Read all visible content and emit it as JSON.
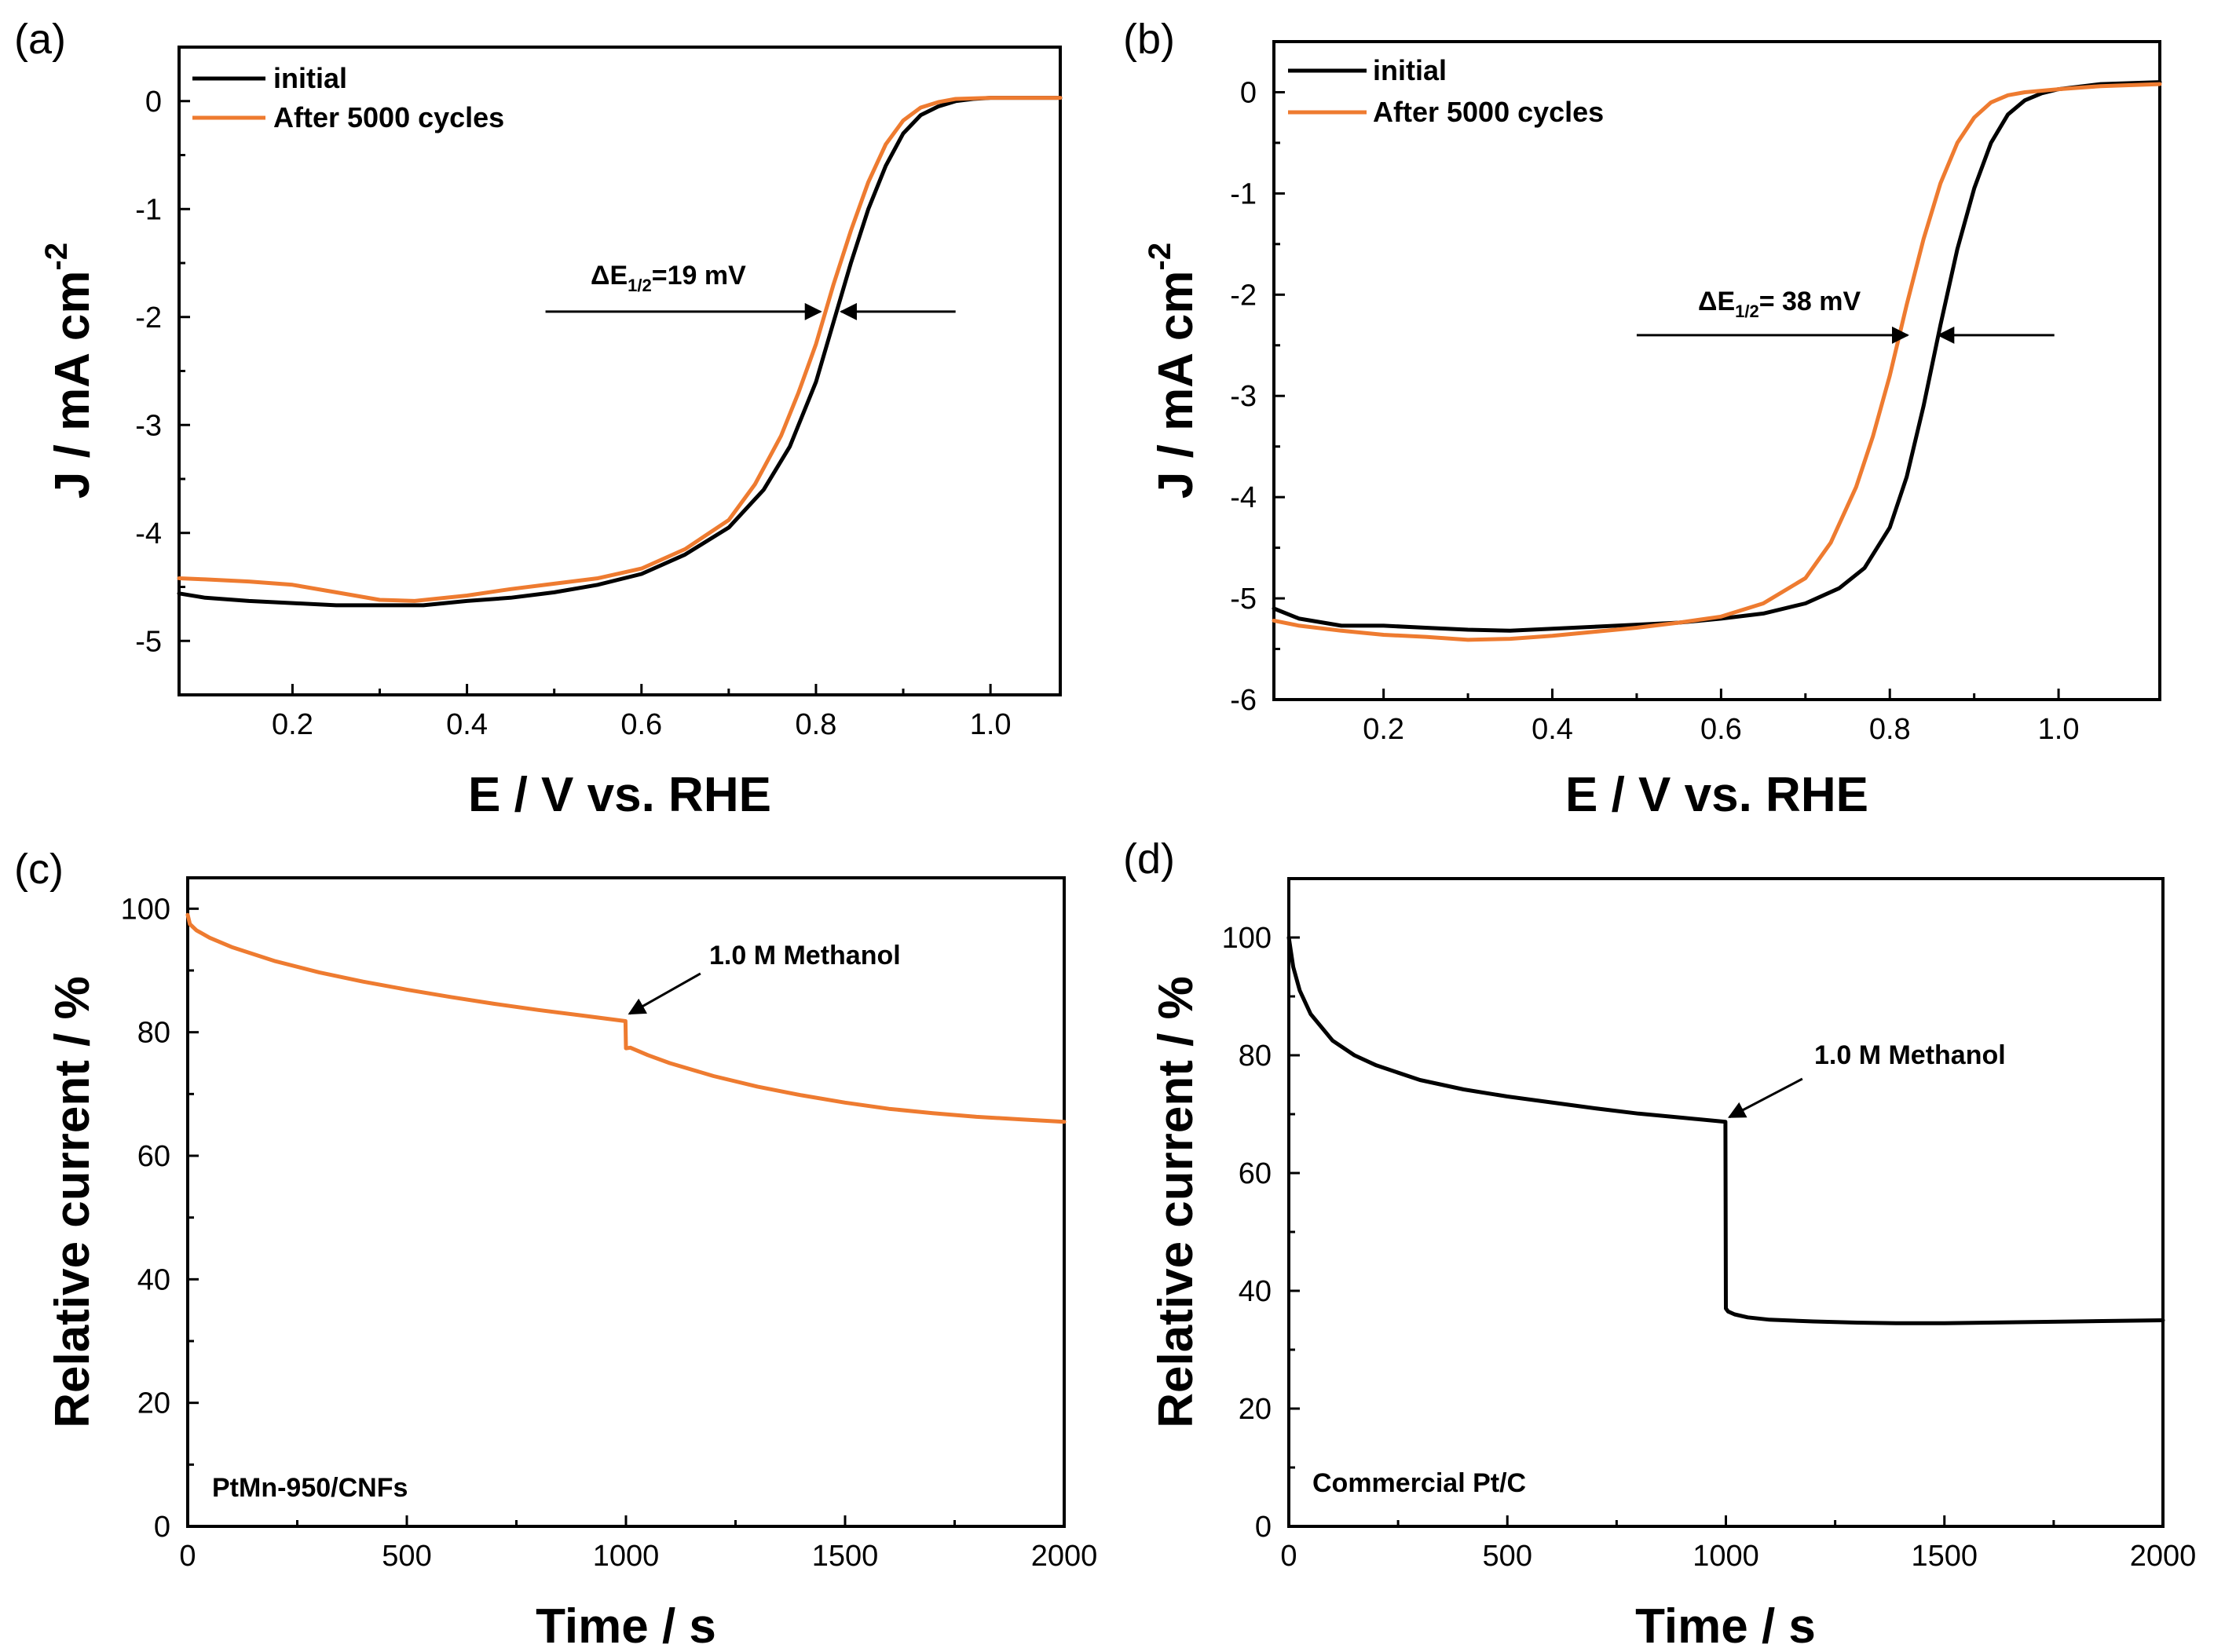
{
  "colors": {
    "initial": "#000000",
    "after_cycles": "#ee7b30",
    "orange_series": "#ee7b30",
    "black_series": "#000000"
  },
  "chart_data": [
    {
      "panel": "(a)",
      "type": "line",
      "xlabel": "E / V vs. RHE",
      "ylabel": "J / mA cm",
      "ylabel_superscript": "-2",
      "xlim": [
        0.07,
        1.08
      ],
      "ylim": [
        -5.5,
        0.5
      ],
      "xticks": [
        "0.2",
        "0.4",
        "0.6",
        "0.8",
        "1.0"
      ],
      "xtick_values": [
        0.2,
        0.4,
        0.6,
        0.8,
        1.0
      ],
      "yticks": [
        "0",
        "-1",
        "-2",
        "-3",
        "-4",
        "-5"
      ],
      "ytick_values": [
        0,
        -1,
        -2,
        -3,
        -4,
        -5
      ],
      "legend_position": "top-left",
      "series": [
        {
          "name": "initial",
          "color": "#000000",
          "x": [
            0.07,
            0.1,
            0.15,
            0.2,
            0.25,
            0.3,
            0.35,
            0.4,
            0.45,
            0.5,
            0.55,
            0.6,
            0.65,
            0.7,
            0.74,
            0.77,
            0.8,
            0.82,
            0.84,
            0.86,
            0.88,
            0.9,
            0.92,
            0.94,
            0.96,
            0.98,
            1.0,
            1.04,
            1.08
          ],
          "y": [
            -4.56,
            -4.6,
            -4.63,
            -4.65,
            -4.67,
            -4.67,
            -4.67,
            -4.63,
            -4.6,
            -4.55,
            -4.48,
            -4.38,
            -4.2,
            -3.95,
            -3.6,
            -3.2,
            -2.6,
            -2.05,
            -1.5,
            -1.0,
            -0.6,
            -0.3,
            -0.13,
            -0.05,
            0.0,
            0.02,
            0.03,
            0.03,
            0.03
          ]
        },
        {
          "name": "After 5000 cycles",
          "color": "#ee7b30",
          "x": [
            0.07,
            0.1,
            0.15,
            0.2,
            0.25,
            0.3,
            0.34,
            0.4,
            0.45,
            0.5,
            0.55,
            0.6,
            0.65,
            0.7,
            0.73,
            0.76,
            0.78,
            0.8,
            0.82,
            0.84,
            0.86,
            0.88,
            0.9,
            0.92,
            0.94,
            0.96,
            1.0,
            1.04,
            1.08
          ],
          "y": [
            -4.42,
            -4.43,
            -4.45,
            -4.48,
            -4.55,
            -4.62,
            -4.63,
            -4.58,
            -4.52,
            -4.47,
            -4.42,
            -4.33,
            -4.15,
            -3.88,
            -3.55,
            -3.1,
            -2.7,
            -2.25,
            -1.7,
            -1.2,
            -0.75,
            -0.4,
            -0.18,
            -0.06,
            -0.01,
            0.02,
            0.03,
            0.03,
            0.03
          ]
        }
      ],
      "annotation": {
        "text_prefix": "ΔE",
        "text_sub": "1/2",
        "text_suffix": "=19 mV",
        "left_arrow_from": 0.49,
        "left_arrow_to": 0.805,
        "right_arrow_from": 0.96,
        "right_arrow_to": 0.829,
        "y": -1.95
      }
    },
    {
      "panel": "(b)",
      "type": "line",
      "xlabel": "E / V vs. RHE",
      "ylabel": "J / mA cm",
      "ylabel_superscript": "-2",
      "xlim": [
        0.07,
        1.12
      ],
      "ylim": [
        -6.0,
        0.5
      ],
      "xticks": [
        "0.2",
        "0.4",
        "0.6",
        "0.8",
        "1.0"
      ],
      "xtick_values": [
        0.2,
        0.4,
        0.6,
        0.8,
        1.0
      ],
      "yticks": [
        "0",
        "-1",
        "-2",
        "-3",
        "-4",
        "-5",
        "-6"
      ],
      "ytick_values": [
        0,
        -1,
        -2,
        -3,
        -4,
        -5,
        -6
      ],
      "legend_position": "top-left",
      "series": [
        {
          "name": "initial",
          "color": "#000000",
          "x": [
            0.07,
            0.1,
            0.15,
            0.2,
            0.25,
            0.3,
            0.35,
            0.4,
            0.45,
            0.5,
            0.55,
            0.6,
            0.65,
            0.7,
            0.74,
            0.77,
            0.8,
            0.82,
            0.84,
            0.86,
            0.88,
            0.9,
            0.92,
            0.94,
            0.96,
            0.98,
            1.0,
            1.05,
            1.12
          ],
          "y": [
            -5.1,
            -5.2,
            -5.27,
            -5.27,
            -5.29,
            -5.31,
            -5.32,
            -5.3,
            -5.28,
            -5.26,
            -5.24,
            -5.2,
            -5.15,
            -5.05,
            -4.9,
            -4.7,
            -4.3,
            -3.8,
            -3.1,
            -2.3,
            -1.55,
            -0.95,
            -0.5,
            -0.22,
            -0.08,
            -0.01,
            0.03,
            0.08,
            0.1
          ]
        },
        {
          "name": "After 5000 cycles",
          "color": "#ee7b30",
          "x": [
            0.07,
            0.1,
            0.15,
            0.2,
            0.25,
            0.3,
            0.35,
            0.4,
            0.45,
            0.5,
            0.55,
            0.6,
            0.65,
            0.7,
            0.73,
            0.76,
            0.78,
            0.8,
            0.82,
            0.84,
            0.86,
            0.88,
            0.9,
            0.92,
            0.94,
            0.96,
            1.0,
            1.05,
            1.12
          ],
          "y": [
            -5.22,
            -5.27,
            -5.32,
            -5.36,
            -5.38,
            -5.41,
            -5.4,
            -5.37,
            -5.33,
            -5.29,
            -5.24,
            -5.18,
            -5.05,
            -4.8,
            -4.45,
            -3.9,
            -3.4,
            -2.8,
            -2.1,
            -1.45,
            -0.9,
            -0.5,
            -0.25,
            -0.1,
            -0.03,
            0.0,
            0.03,
            0.06,
            0.08
          ]
        }
      ],
      "annotation": {
        "text_prefix": "ΔE",
        "text_sub": "1/2",
        "text_suffix": "= 38 mV",
        "left_arrow_from": 0.5,
        "left_arrow_to": 0.821,
        "right_arrow_from": 0.995,
        "right_arrow_to": 0.858,
        "y": -2.4
      }
    },
    {
      "panel": "(c)",
      "type": "line",
      "xlabel": "Time / s",
      "ylabel": "Relative current / %",
      "ylabel_superscript": "",
      "xlim": [
        0,
        2000
      ],
      "ylim": [
        0,
        105
      ],
      "xticks": [
        "0",
        "500",
        "1000",
        "1500",
        "2000"
      ],
      "xtick_values": [
        0,
        500,
        1000,
        1500,
        2000
      ],
      "yticks": [
        "0",
        "20",
        "40",
        "60",
        "80",
        "100"
      ],
      "ytick_values": [
        0,
        20,
        40,
        60,
        80,
        100
      ],
      "sample_label": "PtMn-950/CNFs",
      "series": [
        {
          "name": "PtMn-950/CNFs",
          "color": "#ee7b30",
          "x": [
            0,
            5,
            20,
            50,
            100,
            200,
            300,
            400,
            500,
            600,
            700,
            800,
            900,
            999,
            1000,
            1010,
            1050,
            1100,
            1200,
            1300,
            1400,
            1500,
            1600,
            1700,
            1800,
            1900,
            2000
          ],
          "y": [
            99,
            97.5,
            96.5,
            95.3,
            93.8,
            91.5,
            89.7,
            88.2,
            86.9,
            85.7,
            84.6,
            83.6,
            82.7,
            81.8,
            77.4,
            77.5,
            76.3,
            75.0,
            72.9,
            71.2,
            69.8,
            68.6,
            67.6,
            66.9,
            66.3,
            65.9,
            65.5
          ]
        }
      ],
      "annotation": {
        "text": "1.0 M Methanol",
        "arrow_from_x": 1170,
        "arrow_from_y": 89.5,
        "arrow_to_x": 1008,
        "arrow_to_y": 83
      }
    },
    {
      "panel": "(d)",
      "type": "line",
      "xlabel": "Time / s",
      "ylabel": "Relative current / %",
      "ylabel_superscript": "",
      "xlim": [
        0,
        2000
      ],
      "ylim": [
        0,
        110
      ],
      "xticks": [
        "0",
        "500",
        "1000",
        "1500",
        "2000"
      ],
      "xtick_values": [
        0,
        500,
        1000,
        1500,
        2000
      ],
      "yticks": [
        "0",
        "20",
        "40",
        "60",
        "80",
        "100"
      ],
      "ytick_values": [
        0,
        20,
        40,
        60,
        80,
        100
      ],
      "sample_label": "Commercial Pt/C",
      "series": [
        {
          "name": "Commercial Pt/C",
          "color": "#000000",
          "x": [
            0,
            10,
            25,
            50,
            100,
            150,
            200,
            300,
            400,
            500,
            600,
            700,
            800,
            900,
            999,
            1000,
            1005,
            1020,
            1050,
            1100,
            1200,
            1300,
            1400,
            1500,
            1600,
            1800,
            2000
          ],
          "y": [
            100,
            95,
            91,
            87,
            82.5,
            80,
            78.3,
            75.8,
            74.2,
            73.0,
            72.0,
            71.0,
            70.1,
            69.4,
            68.7,
            37.0,
            36.5,
            36.0,
            35.5,
            35.1,
            34.8,
            34.6,
            34.5,
            34.5,
            34.6,
            34.8,
            35.0
          ]
        }
      ],
      "annotation": {
        "text": "1.0 M Methanol",
        "arrow_from_x": 1175,
        "arrow_from_y": 76,
        "arrow_to_x": 1008,
        "arrow_to_y": 69.5
      }
    }
  ]
}
